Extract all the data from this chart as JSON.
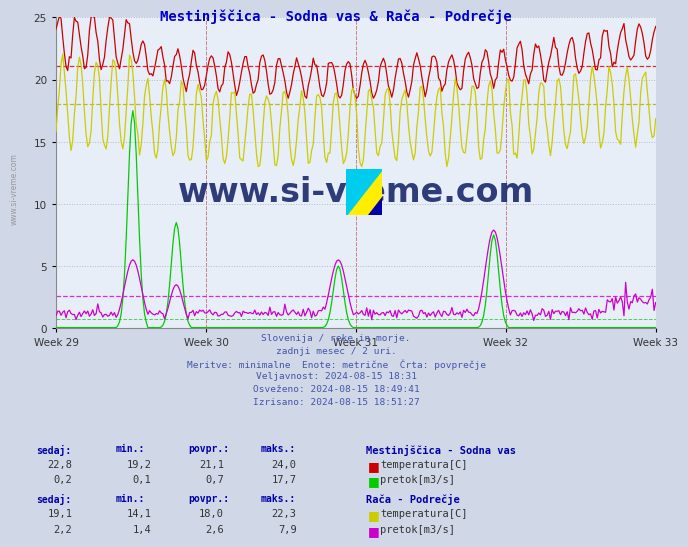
{
  "title": "Mestinjščica - Sodna vas & Rača - Podrečje",
  "title_color": "#0000cc",
  "bg_color": "#d0d8e8",
  "plot_bg_color": "#e8eef8",
  "grid_color": "#b0b8cc",
  "x_labels": [
    "Week 29",
    "Week 30",
    "Week 31",
    "Week 32",
    "Week 33"
  ],
  "x_tick_pos": [
    0,
    84,
    168,
    252,
    336
  ],
  "ylim_max": 25,
  "n_points": 360,
  "info_lines": [
    "Slovenija / reke in morje.",
    "zadnji mesec / 2 uri.",
    "Meritve: minimalne  Enote: metrične  Črta: povprečje",
    "Veljavnost: 2024-08-15 18:31",
    "Osveženo: 2024-08-15 18:49:41",
    "Izrisano: 2024-08-15 18:51:27"
  ],
  "info_color": "#4455aa",
  "table1_header": "Mestinjščica - Sodna vas",
  "table1_rows": [
    {
      "sedaj": "22,8",
      "min": "19,2",
      "povpr": "21,1",
      "maks": "24,0",
      "label": "temperatura[C]",
      "color": "#cc0000"
    },
    {
      "sedaj": "0,2",
      "min": "0,1",
      "povpr": "0,7",
      "maks": "17,7",
      "label": "pretok[m3/s]",
      "color": "#00cc00"
    }
  ],
  "table2_header": "Rača - Podrečje",
  "table2_rows": [
    {
      "sedaj": "19,1",
      "min": "14,1",
      "povpr": "18,0",
      "maks": "22,3",
      "label": "temperatura[C]",
      "color": "#cccc00"
    },
    {
      "sedaj": "2,2",
      "min": "1,4",
      "povpr": "2,6",
      "maks": "7,9",
      "label": "pretok[m3/s]",
      "color": "#cc00cc"
    }
  ],
  "avg_red": 21.1,
  "avg_yellow": 18.0,
  "avg_green": 0.7,
  "avg_magenta": 2.6,
  "col_headers": [
    "sedaj:",
    "min.:",
    "povpr.:",
    "maks.:"
  ],
  "watermark_text": "www.si-vreme.com",
  "watermark_color": "#1a2a6c",
  "sidebar_text": "www.si-vreme.com"
}
